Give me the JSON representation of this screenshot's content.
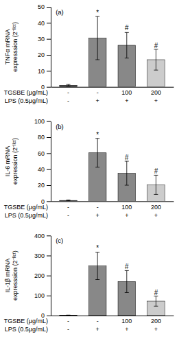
{
  "chart_data": [
    {
      "type": "bar",
      "title": "(a)",
      "ylabel": "TNFα mRNA\nexpresssion (2⁻ᴵᴵᶜᵗ)",
      "categories": [
        [
          "-",
          "-"
        ],
        [
          "-",
          "+"
        ],
        [
          "100",
          "+"
        ],
        [
          "200",
          "+"
        ]
      ],
      "category_levels": [
        "TGSBE (μg/mL)",
        "LPS (0.5μg/mL)"
      ],
      "values": [
        1.0,
        30.5,
        26.0,
        17.0
      ],
      "errors": [
        0.5,
        13.5,
        8.0,
        6.5
      ],
      "colors": [
        "#444444",
        "#888888",
        "#888888",
        "#cccccc"
      ],
      "significance": [
        null,
        "*",
        "#",
        "#"
      ],
      "significance_y": [
        null,
        44.5,
        35.0,
        24.0
      ],
      "ylim": [
        0,
        50
      ],
      "yticks": [
        0,
        10,
        20,
        30,
        40,
        50
      ]
    },
    {
      "type": "bar",
      "title": "(b)",
      "ylabel": "IL-6 mRNA\nexpression (2⁻ᴵᴵᶜᵗ)",
      "categories": [
        [
          "-",
          "-"
        ],
        [
          "-",
          "+"
        ],
        [
          "100",
          "+"
        ],
        [
          "200",
          "+"
        ]
      ],
      "category_levels": [
        "TGSBE (μg/mL)",
        "LPS (0.5μg/mL)"
      ],
      "values": [
        1.0,
        60.5,
        35.0,
        20.5
      ],
      "errors": [
        0.5,
        18.0,
        15.0,
        12.0
      ],
      "colors": [
        "#444444",
        "#888888",
        "#888888",
        "#cccccc"
      ],
      "significance": [
        null,
        "*",
        "#",
        "#"
      ],
      "significance_y": [
        null,
        79.5,
        51.0,
        33.5
      ],
      "ylim": [
        0,
        100
      ],
      "yticks": [
        0,
        20,
        40,
        60,
        80,
        100
      ]
    },
    {
      "type": "bar",
      "title": "(c)",
      "ylabel": "IL-1β mRNA\nexpresssion (2⁻ᴵᴵᶜᵗ)",
      "categories": [
        [
          "-",
          "-"
        ],
        [
          "-",
          "+"
        ],
        [
          "100",
          "+"
        ],
        [
          "200",
          "+"
        ]
      ],
      "category_levels": [
        "TGSBE (μg/mL)",
        "LPS (0.5μg/mL)"
      ],
      "values": [
        1.5,
        248.0,
        170.0,
        72.0
      ],
      "errors": [
        1.0,
        68.0,
        55.0,
        25.0
      ],
      "colors": [
        "#444444",
        "#888888",
        "#888888",
        "#cccccc"
      ],
      "significance": [
        null,
        "*",
        "#",
        "#"
      ],
      "significance_y": [
        null,
        322.0,
        230.0,
        100.0
      ],
      "ylim": [
        0,
        400
      ],
      "yticks": [
        0,
        100,
        200,
        300,
        400
      ]
    }
  ]
}
